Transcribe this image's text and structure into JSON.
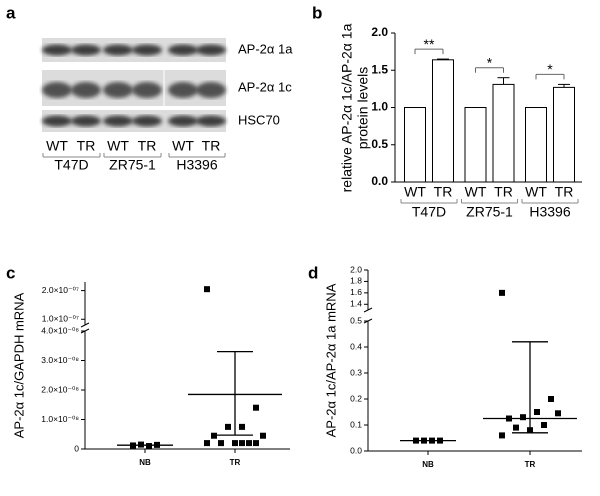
{
  "panel_labels": [
    "a",
    "b",
    "c",
    "d"
  ],
  "blot": {
    "rows": [
      "AP-2α 1a",
      "AP-2α 1c",
      "HSC70"
    ],
    "lanes": [
      "WT",
      "TR",
      "WT",
      "TR",
      "WT",
      "TR"
    ],
    "groups": [
      "T47D",
      "ZR75-1",
      "H3396"
    ]
  },
  "chart_data": [
    {
      "type": "bar",
      "ylabel": [
        "relative AP-2α 1c/AP-2α 1a",
        "protein levels"
      ],
      "categories": [
        "WT",
        "TR",
        "WT",
        "TR",
        "WT",
        "TR"
      ],
      "groups": [
        "T47D",
        "ZR75-1",
        "H3396"
      ],
      "values": [
        1,
        1.64,
        1,
        1.31,
        1,
        1.27
      ],
      "errors": [
        null,
        0.01,
        null,
        0.09,
        null,
        0.04
      ],
      "annotations": [
        "**",
        "*",
        "*"
      ],
      "color": "#ffffff",
      "ylim": [
        0,
        2
      ],
      "yticks": [
        {
          "value": 0,
          "label": "0.0"
        },
        0.5,
        {
          "value": 1,
          "label": "1.0"
        },
        1.5,
        {
          "value": 2,
          "label": "2.0"
        }
      ]
    },
    {
      "type": "dot",
      "ylabel": "AP-2α 1c/GAPDH mRNA",
      "categories": [
        "NB",
        "TR"
      ],
      "values": [
        [
          1.2e-09,
          1.5e-09,
          1e-09,
          1.4e-09
        ],
        [
          2.05e-07,
          1.4e-08,
          7.5e-09,
          7.5e-09,
          4.5e-09,
          4.5e-09,
          2e-09,
          2e-09,
          2e-09,
          2e-09,
          2e-09,
          2e-09
        ]
      ],
      "mean": [
        1.3e-09,
        1.85e-08
      ],
      "upper": [
        null,
        3.3e-08
      ],
      "lower": [
        null,
        4.7e-09
      ],
      "color": "#000000",
      "ylim": [
        0,
        4e-08
      ],
      "yticks": [
        0,
        {
          "value": 1e-08,
          "label": "1.0×10⁻⁰⁸"
        },
        {
          "value": 2e-08,
          "label": "2.0×10⁻⁰⁸"
        },
        {
          "value": 3e-08,
          "label": "3.0×10⁻⁰⁸"
        },
        {
          "value": 4e-08,
          "label": "4.0×10⁻⁰⁸"
        }
      ],
      "ylim_break": [
        8e-08,
        2.3e-07
      ],
      "yticks_break": [
        {
          "value": 1e-07,
          "label": "1.0×10⁻⁰⁷"
        },
        {
          "value": 2e-07,
          "label": "2.0×10⁻⁰⁷"
        }
      ]
    },
    {
      "type": "dot",
      "ylabel": "AP-2α 1c/AP-2α 1a mRNA",
      "categories": [
        "NB",
        "TR"
      ],
      "values": [
        [
          0.04,
          0.04,
          0.04,
          0.04
        ],
        [
          1.6,
          0.2,
          0.15,
          0.13,
          0.125,
          0.145,
          0.1,
          0.08,
          0.09,
          0.06
        ]
      ],
      "mean": [
        0.04,
        0.125
      ],
      "upper": [
        null,
        0.42
      ],
      "lower": [
        null,
        0.07
      ],
      "color": "#000000",
      "ylim": [
        0,
        0.5
      ],
      "yticks": [
        {
          "value": 0,
          "label": "0.0"
        },
        0.1,
        0.2,
        0.3,
        0.4,
        0.5
      ],
      "ylim_break": [
        1.3,
        2.0
      ],
      "yticks_break": [
        1.4,
        1.6,
        1.8,
        {
          "value": 2,
          "label": "2.0"
        }
      ]
    }
  ]
}
